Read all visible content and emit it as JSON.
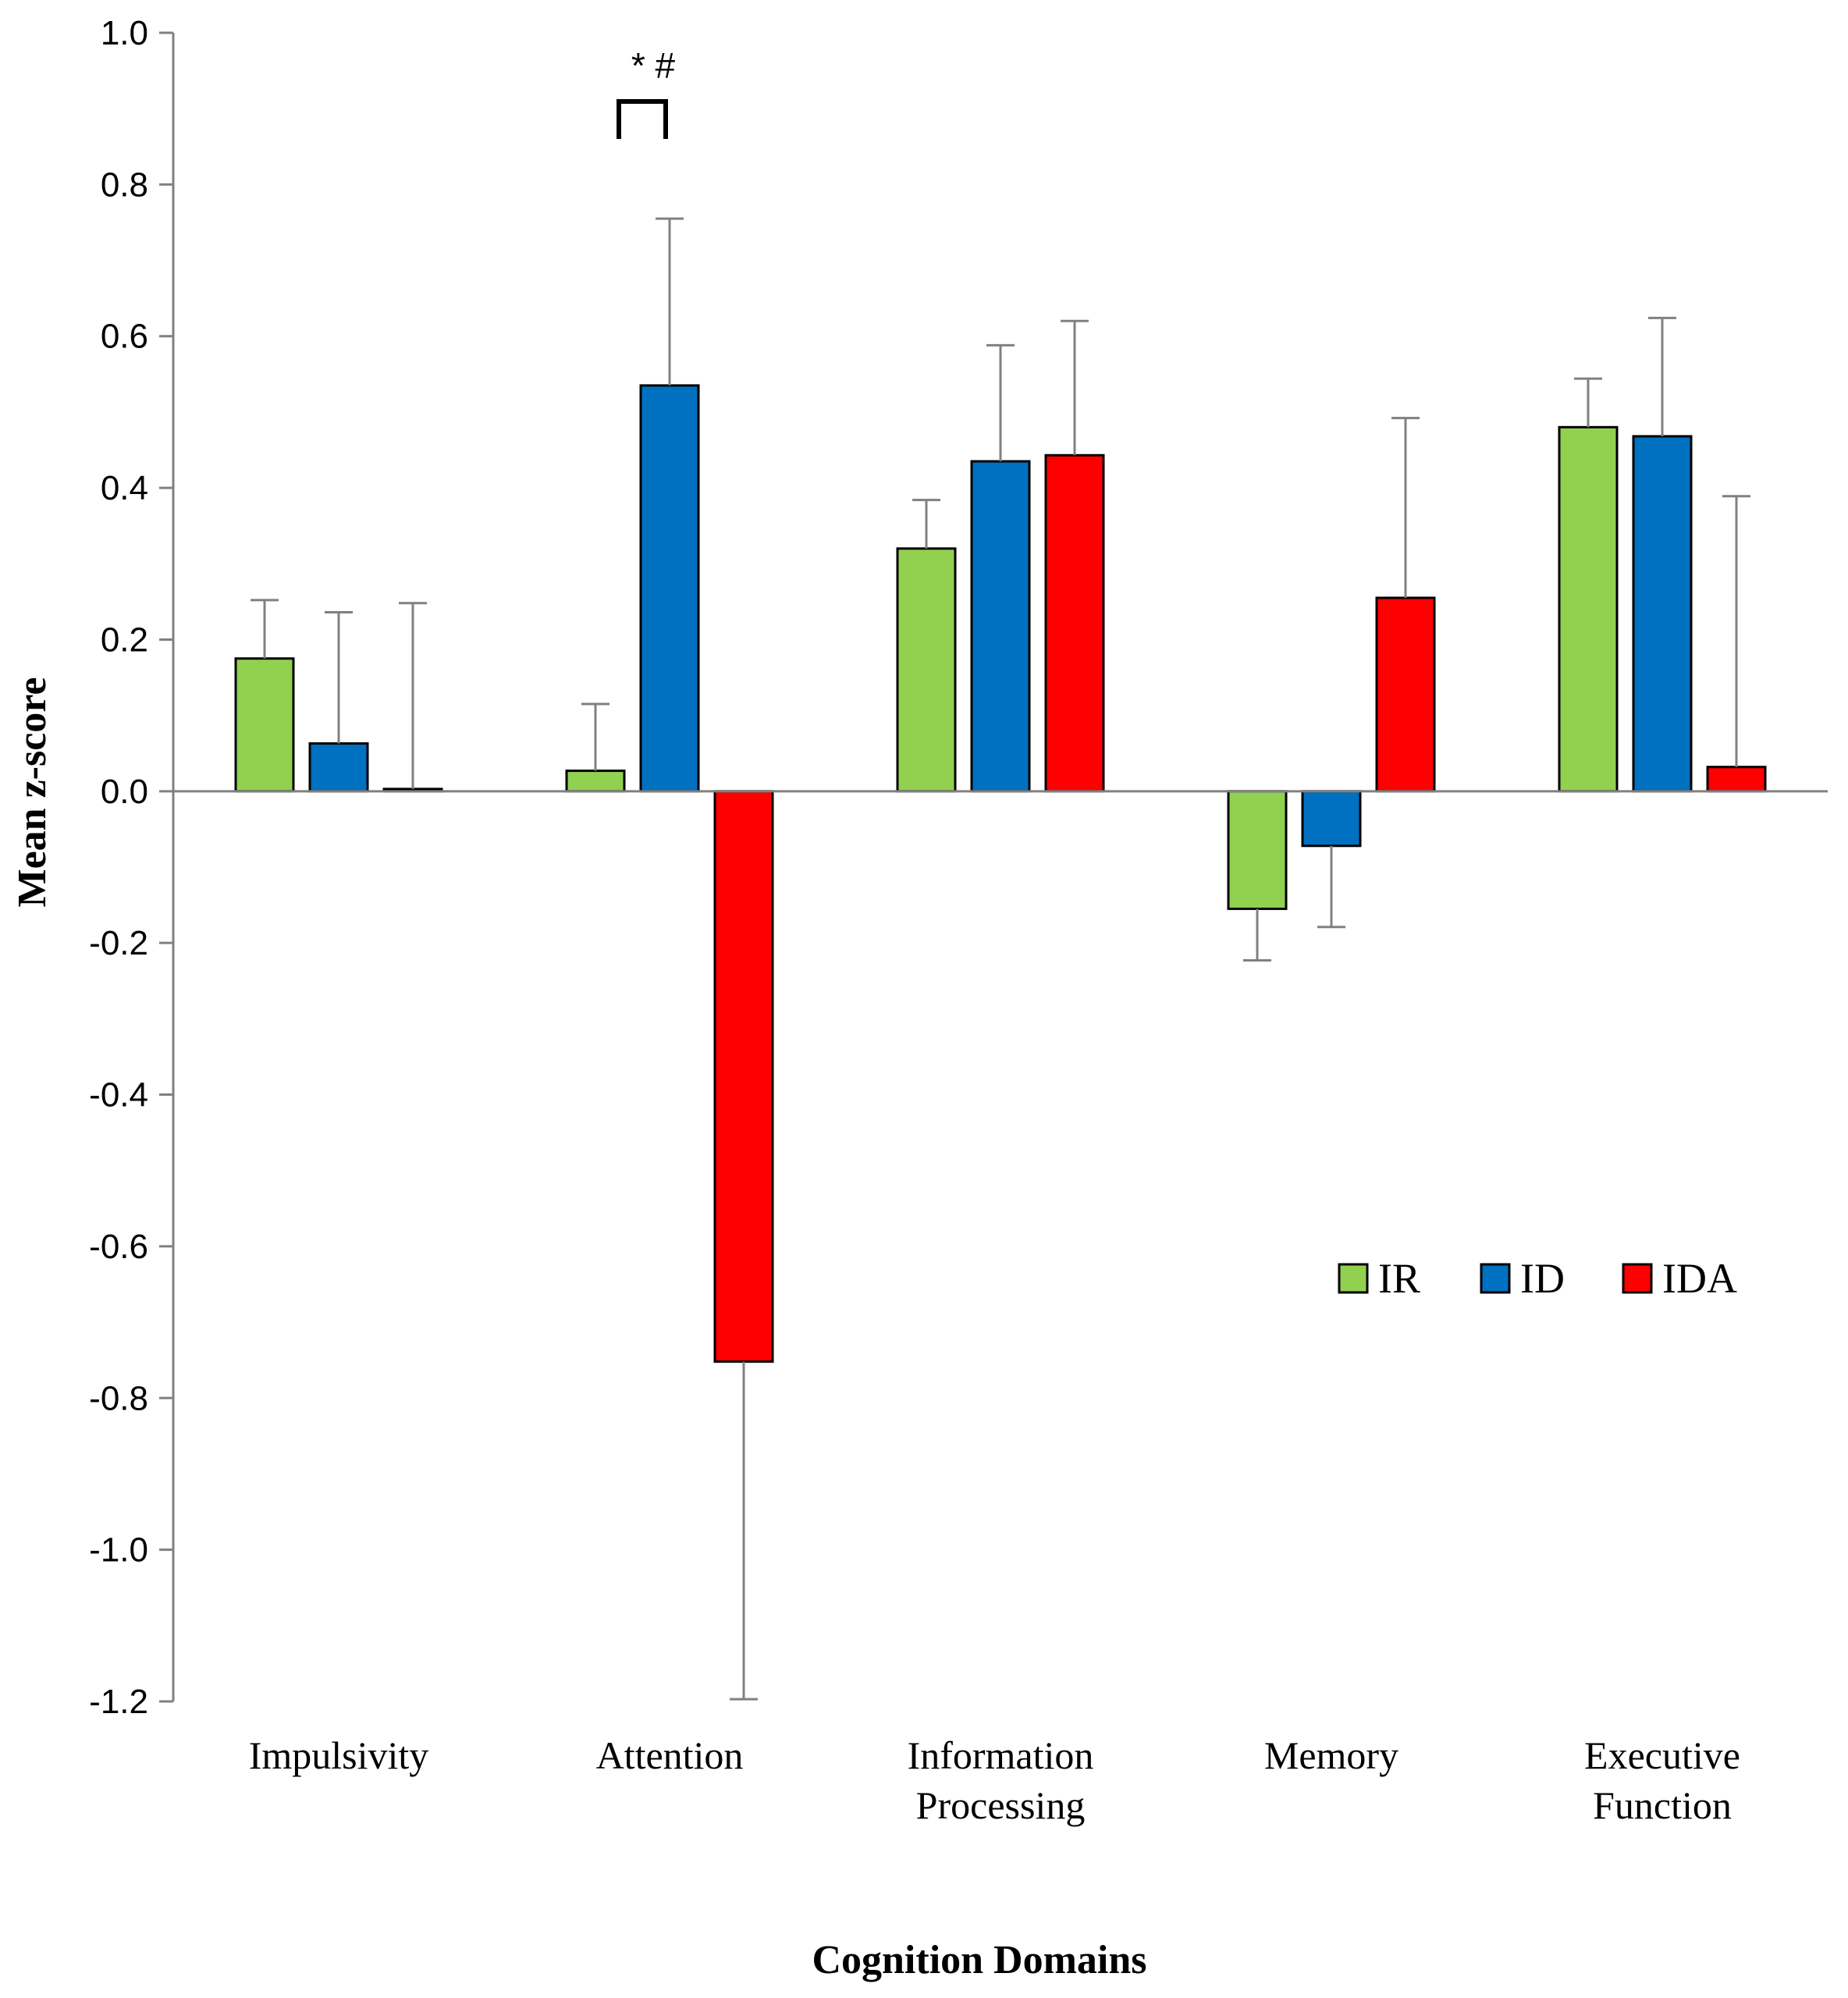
{
  "chart_data": {
    "type": "bar",
    "title": "",
    "xlabel": "Cognition Domains",
    "ylabel": "Mean z-score",
    "ylim": [
      -1.2,
      1.0
    ],
    "yticks": [
      "1.0",
      "0.8",
      "0.6",
      "0.4",
      "0.2",
      "0.0",
      "-0.2",
      "-0.4",
      "-0.6",
      "-0.8",
      "-1.0",
      "-1.2"
    ],
    "ytick_values": [
      1.0,
      0.8,
      0.6,
      0.4,
      0.2,
      0.0,
      -0.2,
      -0.4,
      -0.6,
      -0.8,
      -1.0,
      -1.2
    ],
    "categories": [
      [
        "Impulsivity"
      ],
      [
        "Attention"
      ],
      [
        "Information",
        "Processing"
      ],
      [
        "Memory"
      ],
      [
        "Executive",
        "Function"
      ]
    ],
    "series": [
      {
        "name": "IR",
        "color": "#92d050",
        "values": [
          0.175,
          0.027,
          0.32,
          -0.155,
          0.48
        ],
        "errors": [
          0.077,
          0.088,
          0.064,
          0.068,
          0.064
        ]
      },
      {
        "name": "ID",
        "color": "#0070c0",
        "values": [
          0.063,
          0.535,
          0.435,
          -0.072,
          0.468
        ],
        "errors": [
          0.173,
          0.22,
          0.153,
          0.107,
          0.156
        ]
      },
      {
        "name": "IDA",
        "color": "#ff0000",
        "values": [
          0.003,
          -0.752,
          0.443,
          0.255,
          0.032
        ],
        "errors": [
          0.245,
          0.445,
          0.177,
          0.237,
          0.357
        ]
      }
    ],
    "legend_position": "lower-right",
    "grid": false,
    "annotation": {
      "text": "* #",
      "category": "Attention",
      "between": [
        "IR",
        "ID"
      ]
    }
  }
}
